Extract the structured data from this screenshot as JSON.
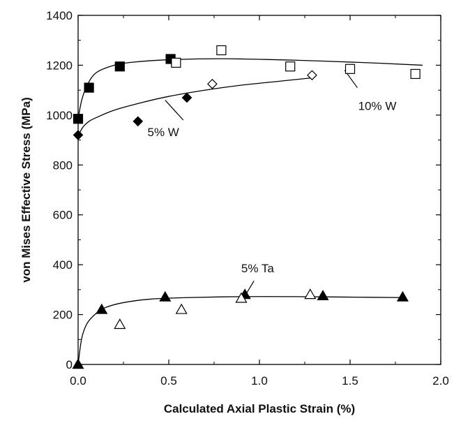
{
  "chart_data": {
    "type": "scatter",
    "xlabel": "Calculated Axial Plastic Strain (%)",
    "ylabel": "von Mises Effective Stress (MPa)",
    "xlim": [
      0.0,
      2.0
    ],
    "ylim": [
      0,
      1400
    ],
    "x_ticks": [
      "0.0",
      "0.5",
      "1.0",
      "1.5",
      "2.0"
    ],
    "y_ticks": [
      "0",
      "200",
      "400",
      "600",
      "800",
      "1000",
      "1200",
      "1400"
    ],
    "grid": false,
    "legend": "none",
    "annotations": [
      {
        "text": "10% W",
        "x": 1.65,
        "y": 1020,
        "pointer_from": [
          1.54,
          1110
        ],
        "pointer_to": [
          1.47,
          1180
        ]
      },
      {
        "text": "5% W",
        "x": 0.47,
        "y": 915,
        "pointer_from": [
          0.58,
          980
        ],
        "pointer_to": [
          0.48,
          1060
        ]
      },
      {
        "text": "5% Ta",
        "x": 0.99,
        "y": 370,
        "pointer_from": [
          0.97,
          335
        ],
        "pointer_to": [
          0.92,
          275
        ]
      }
    ],
    "series": [
      {
        "marker": "filled-square",
        "color": "#000000",
        "x": [
          0.0,
          0.06,
          0.23,
          0.51
        ],
        "y": [
          985,
          1110,
          1195,
          1225
        ]
      },
      {
        "marker": "open-square",
        "color": "#000000",
        "x": [
          0.54,
          0.79,
          1.17,
          1.5,
          1.86
        ],
        "y": [
          1210,
          1260,
          1195,
          1185,
          1165
        ]
      },
      {
        "marker": "filled-diamond",
        "color": "#000000",
        "x": [
          0.0,
          0.33,
          0.6
        ],
        "y": [
          920,
          975,
          1070
        ]
      },
      {
        "marker": "open-diamond",
        "color": "#000000",
        "x": [
          0.74,
          1.29
        ],
        "y": [
          1125,
          1160
        ]
      },
      {
        "marker": "filled-triangle",
        "color": "#000000",
        "x": [
          0.0,
          0.13,
          0.48,
          0.92,
          1.35,
          1.79
        ],
        "y": [
          0,
          220,
          270,
          280,
          275,
          270
        ]
      },
      {
        "marker": "open-triangle",
        "color": "#000000",
        "x": [
          0.23,
          0.57,
          0.9,
          1.28
        ],
        "y": [
          160,
          220,
          265,
          280
        ]
      }
    ],
    "fit_curves": [
      {
        "x": [
          0.0,
          0.02,
          0.05,
          0.1,
          0.2,
          0.3,
          0.5,
          0.8,
          1.2,
          1.6,
          1.9
        ],
        "y": [
          985,
          1060,
          1120,
          1170,
          1200,
          1212,
          1222,
          1226,
          1220,
          1210,
          1200
        ]
      },
      {
        "x": [
          0.0,
          0.01,
          0.03,
          0.06,
          0.1,
          0.2,
          0.35,
          0.5,
          0.7,
          0.9,
          1.1,
          1.3
        ],
        "y": [
          905,
          930,
          955,
          975,
          990,
          1020,
          1050,
          1075,
          1100,
          1120,
          1135,
          1150
        ]
      },
      {
        "x": [
          0.0,
          0.02,
          0.05,
          0.1,
          0.15,
          0.25,
          0.4,
          0.6,
          0.9,
          1.2,
          1.5,
          1.8
        ],
        "y": [
          0,
          105,
          165,
          205,
          228,
          248,
          262,
          268,
          272,
          272,
          270,
          268
        ]
      }
    ]
  }
}
